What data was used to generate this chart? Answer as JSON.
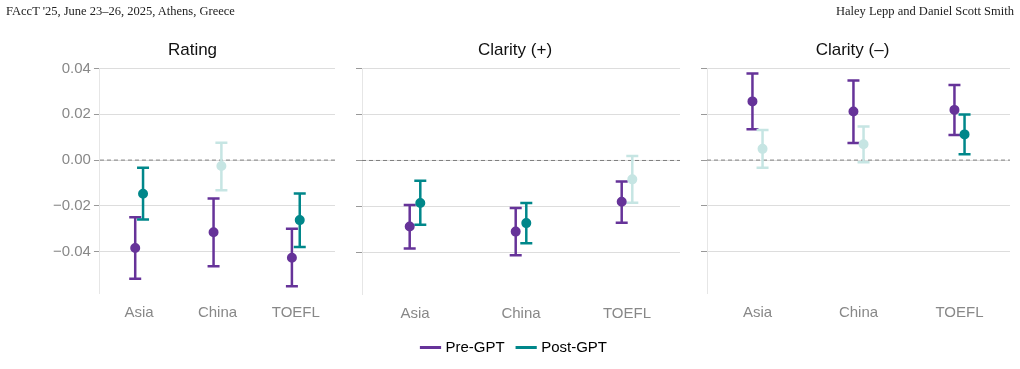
{
  "chart_data": [
    {
      "type": "scatter",
      "title": "Rating",
      "categories": [
        "Asia",
        "China",
        "TOEFL"
      ],
      "ylim": [
        -0.058,
        0.04
      ],
      "yticks": [
        {
          "value": -0.04,
          "label": "−0.04"
        },
        {
          "value": -0.02,
          "label": "−0.02"
        },
        {
          "value": 0,
          "label": "0.00"
        },
        {
          "value": 0.02,
          "label": "0.02"
        },
        {
          "value": 0.04,
          "label": "0.04"
        }
      ],
      "grid": "y",
      "legend": false,
      "marker": "circle",
      "ref_lines": [
        {
          "axis": "y",
          "value": 0,
          "color": "#666666",
          "line_style": "dashed"
        }
      ],
      "annotations": [
        "FAccT '25, June 23–26, 2025, Athens, Greece"
      ],
      "series": [
        {
          "color": "#663399",
          "colors": [
            "#663399",
            "#663399",
            "#663399"
          ],
          "values": [
            -0.0384,
            -0.0315,
            -0.0426
          ],
          "errors": [
            [
              -0.0518,
              -0.025
            ],
            [
              -0.0463,
              -0.0168
            ],
            [
              -0.0551,
              -0.03
            ]
          ]
        },
        {
          "color": "#00878a",
          "colors": [
            "#00878a",
            "#c6e5e3",
            "#00878a"
          ],
          "values": [
            -0.0147,
            -0.0026,
            -0.0262
          ],
          "errors": [
            [
              -0.0259,
              -0.0034
            ],
            [
              -0.0132,
              0.0076
            ],
            [
              -0.0379,
              -0.0146
            ]
          ]
        }
      ]
    },
    {
      "type": "scatter",
      "title": "Clarity (+)",
      "categories": [
        "Asia",
        "China",
        "TOEFL"
      ],
      "ylim": [
        -0.058,
        0.04
      ],
      "yticks": [
        -0.04,
        -0.02,
        0,
        0.02,
        0.04
      ],
      "tick_labels": "x",
      "grid": "y",
      "legend": "bottom",
      "marker": "circle",
      "ref_lines": [
        {
          "axis": "y",
          "value": 0,
          "color": "#666666",
          "line_style": "dashed"
        }
      ],
      "series": [
        {
          "name": "Pre-GPT",
          "color": "#663399",
          "colors": [
            "#663399",
            "#663399",
            "#663399"
          ],
          "values": [
            -0.0287,
            -0.0309,
            -0.0179
          ],
          "errors": [
            [
              -0.0382,
              -0.0193
            ],
            [
              -0.0412,
              -0.0206
            ],
            [
              -0.0271,
              -0.0091
            ]
          ]
        },
        {
          "name": "Post-GPT",
          "color": "#00878a",
          "colors": [
            "#00878a",
            "#00878a",
            "#c6e5e3"
          ],
          "values": [
            -0.0185,
            -0.0272,
            -0.0082
          ],
          "errors": [
            [
              -0.0279,
              -0.0088
            ],
            [
              -0.036,
              -0.0185
            ],
            [
              -0.0184,
              0.0019
            ]
          ]
        }
      ]
    },
    {
      "type": "scatter",
      "title": "Clarity (–)",
      "categories": [
        "Asia",
        "China",
        "TOEFL"
      ],
      "ylim": [
        -0.058,
        0.04
      ],
      "yticks": [
        -0.04,
        -0.02,
        0,
        0.02,
        0.04
      ],
      "tick_labels": "x",
      "grid": "y",
      "legend": false,
      "marker": "circle",
      "ref_lines": [
        {
          "axis": "y",
          "value": 0,
          "color": "#666666",
          "line_style": "dashed"
        }
      ],
      "annotations": [
        "Haley Lepp and Daniel Scott Smith"
      ],
      "series": [
        {
          "color": "#663399",
          "colors": [
            "#663399",
            "#663399",
            "#663399"
          ],
          "values": [
            0.0256,
            0.0212,
            0.0219
          ],
          "errors": [
            [
              0.0135,
              0.0378
            ],
            [
              0.0075,
              0.0347
            ],
            [
              0.0109,
              0.0328
            ]
          ]
        },
        {
          "color": "#00878a",
          "colors": [
            "#c6e5e3",
            "#c6e5e3",
            "#00878a"
          ],
          "values": [
            0.0049,
            0.0069,
            0.0112
          ],
          "errors": [
            [
              -0.0034,
              0.0131
            ],
            [
              -0.001,
              0.0147
            ],
            [
              0.0025,
              0.0199
            ]
          ]
        }
      ]
    }
  ]
}
